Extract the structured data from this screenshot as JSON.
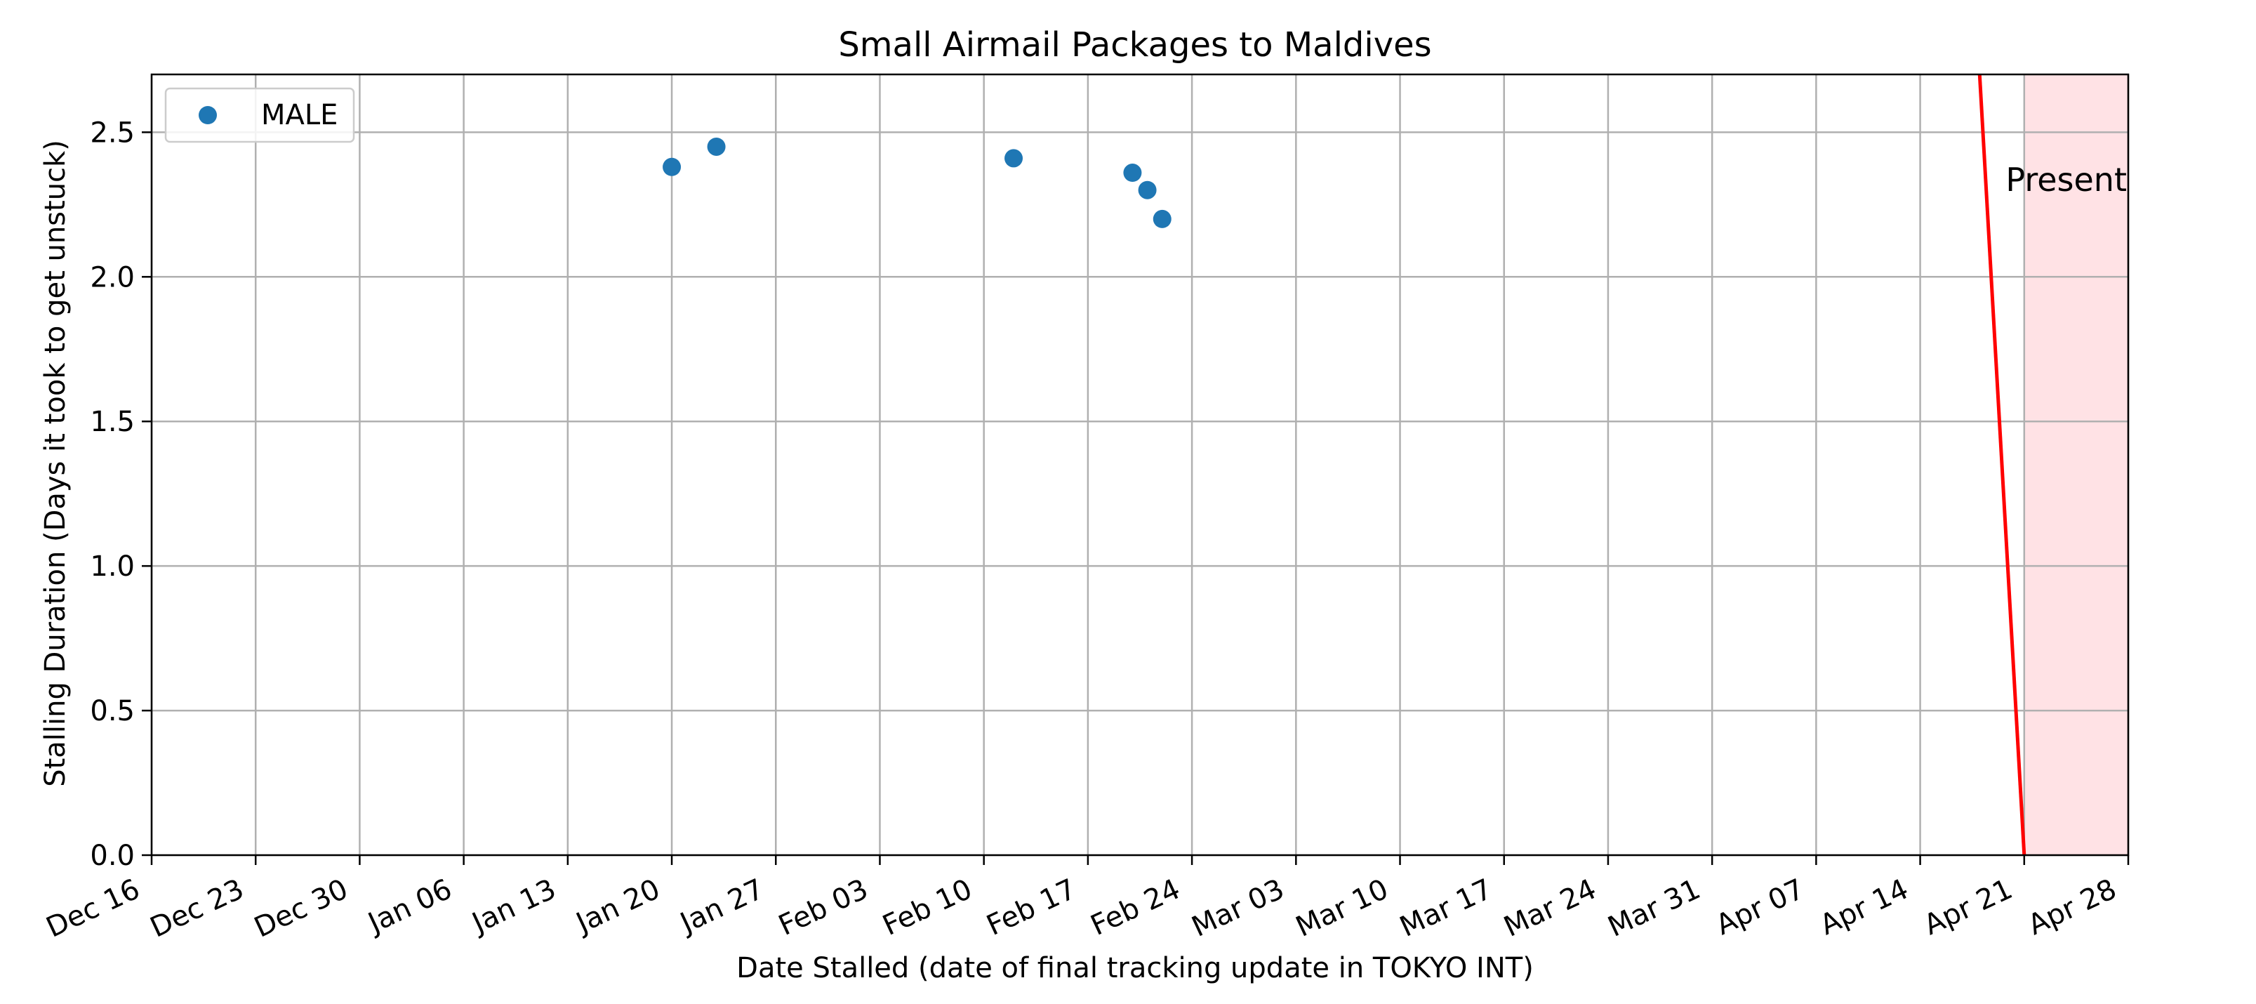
{
  "chart_data": {
    "type": "scatter",
    "title": "Small Airmail Packages to Maldives",
    "xlabel": "Date Stalled (date of final tracking update in TOKYO INT)",
    "ylabel": "Stalling Duration (Days it took to get unstuck)",
    "x_axis_type": "date",
    "xlim": [
      "Dec 16",
      "Apr 28"
    ],
    "ylim": [
      0,
      2.7
    ],
    "x_ticks": [
      "Dec 16",
      "Dec 23",
      "Dec 30",
      "Jan 06",
      "Jan 13",
      "Jan 20",
      "Jan 27",
      "Feb 03",
      "Feb 10",
      "Feb 17",
      "Feb 24",
      "Mar 03",
      "Mar 10",
      "Mar 17",
      "Mar 24",
      "Mar 31",
      "Apr 07",
      "Apr 14",
      "Apr 21",
      "Apr 28"
    ],
    "y_ticks": [
      0.0,
      0.5,
      1.0,
      1.5,
      2.0,
      2.5
    ],
    "y_tick_labels": [
      "0.0",
      "0.5",
      "1.0",
      "1.5",
      "2.0",
      "2.5"
    ],
    "grid": true,
    "legend_position": "top-left",
    "series": [
      {
        "name": "MALE",
        "color": "#1f77b4",
        "points": [
          {
            "x": "Jan 20",
            "y": 2.38
          },
          {
            "x": "Jan 23",
            "y": 2.45
          },
          {
            "x": "Feb 12",
            "y": 2.41
          },
          {
            "x": "Feb 20",
            "y": 2.36
          },
          {
            "x": "Feb 21",
            "y": 2.3
          },
          {
            "x": "Feb 22",
            "y": 2.2
          }
        ]
      }
    ],
    "present_marker": {
      "label": "Present",
      "color": "#ff0000",
      "line_from": {
        "x": "Apr 18",
        "y": 2.7
      },
      "line_to": {
        "x": "Apr 21",
        "y": 0.0
      },
      "shaded_from": "Apr 21",
      "shaded_to": "Apr 28",
      "shade_color": "#ffe2e5"
    }
  }
}
